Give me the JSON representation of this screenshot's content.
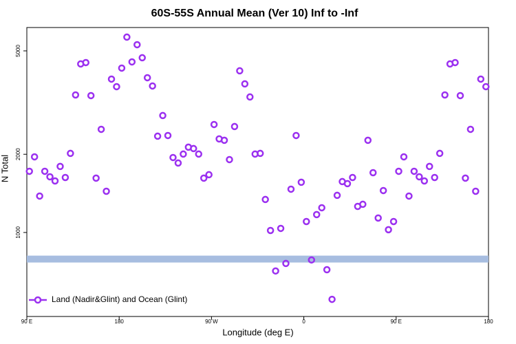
{
  "chart_data": {
    "type": "scatter",
    "title": "60S-55S Annual Mean (Ver 10)   Inf to -Inf",
    "x_label": "Longitude (deg E)",
    "y_label": "N Total",
    "xlim": [
      90,
      540
    ],
    "xticks": [
      {
        "value": 90,
        "label": "90 E"
      },
      180,
      {
        "value": 270,
        "label": "90 W"
      },
      {
        "value": 360,
        "label": "0"
      },
      {
        "value": 450,
        "label": "90 E"
      },
      {
        "value": 540,
        "label": "180"
      }
    ],
    "ylim": [
      475,
      6150
    ],
    "yticks": [
      1000,
      2000,
      5000
    ],
    "log_y": true,
    "legend": "bottom-left",
    "reference_band": {
      "value": 790,
      "color": "#a7bde0"
    },
    "series": [
      {
        "name": "Land (Nadir&Glint) and Ocean (Glint)",
        "color": "#9b30f0",
        "x": [
          92.5,
          97.5,
          102.5,
          107.5,
          112.5,
          117.5,
          122.5,
          127.5,
          132.5,
          137.5,
          142.5,
          147.5,
          152.5,
          157.5,
          162.5,
          167.5,
          172.5,
          177.5,
          182.5,
          187.5,
          192.5,
          197.5,
          202.5,
          207.5,
          212.5,
          217.5,
          222.5,
          227.5,
          232.5,
          237.5,
          242.5,
          247.5,
          252.5,
          257.5,
          262.5,
          267.5,
          272.5,
          277.5,
          282.5,
          287.5,
          292.5,
          297.5,
          302.5,
          307.5,
          312.5,
          317.5,
          322.5,
          327.5,
          332.5,
          337.5,
          342.5,
          347.5,
          352.5,
          357.5,
          362.5,
          367.5,
          372.5,
          377.5,
          382.5,
          387.5,
          392.5,
          397.5,
          402.5,
          407.5,
          412.5,
          417.5,
          422.5,
          427.5,
          432.5,
          437.5,
          442.5,
          447.5,
          452.5,
          457.5,
          462.5,
          467.5,
          472.5,
          477.5,
          482.5,
          487.5,
          492.5,
          497.5,
          502.5,
          507.5,
          512.5,
          517.5,
          522.5,
          527.5,
          532.5,
          537.5
        ],
        "values": [
          1720,
          1955,
          1381,
          1720,
          1638,
          1579,
          1796,
          1628,
          2016,
          3384,
          4454,
          4508,
          3364,
          1619,
          2495,
          1441,
          3894,
          3641,
          4293,
          5649,
          4535,
          5282,
          4705,
          3942,
          3664,
          2348,
          2819,
          2362,
          1943,
          1851,
          2004,
          2130,
          2104,
          2004,
          1619,
          1669,
          2604,
          2292,
          2264,
          1908,
          2557,
          4190,
          3732,
          3324,
          2004,
          2016,
          1340,
          1018,
          711,
          1037,
          760,
          1468,
          2362,
          1561,
          1102,
          784,
          1172,
          1245,
          719,
          553,
          1390,
          1570,
          1542,
          1628,
          1260,
          1284,
          2264,
          1699,
          1137,
          1450,
          1025,
          1102,
          1720,
          1955,
          1381,
          1720,
          1638,
          1579,
          1796,
          1628,
          2016,
          3384,
          4454,
          4508,
          3364,
          1619,
          2495,
          1441,
          3894,
          3641
        ]
      }
    ]
  }
}
